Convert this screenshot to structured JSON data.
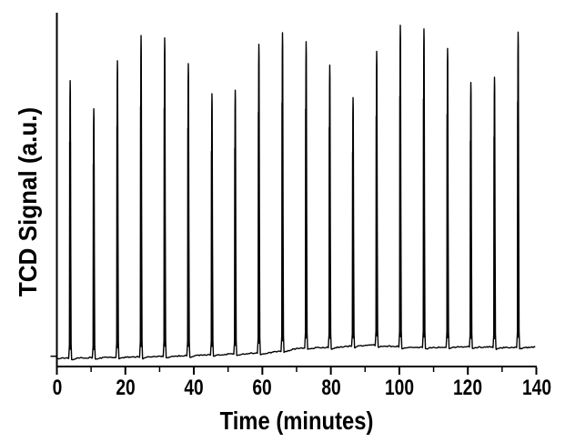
{
  "chart_data": {
    "type": "line",
    "title": "",
    "xlabel": "Time (minutes)",
    "ylabel": "TCD Signal (a.u.)",
    "xlim": [
      0,
      140
    ],
    "x_major_tick_values": [
      0,
      20,
      40,
      60,
      80,
      100,
      120,
      140
    ],
    "x_major_tick_labels": [
      "0",
      "20",
      "40",
      "60",
      "80",
      "100",
      "120",
      "140"
    ],
    "x_minor_tick_values": [
      10,
      30,
      50,
      70,
      90,
      110,
      130
    ],
    "y_tick_levels": [
      0.0065
    ],
    "y_tick_labels": [],
    "grid": false,
    "legend": null,
    "line_color": "#000000",
    "background_color": "#ffffff",
    "n_peaks": 20,
    "peak_interval_minutes": 6.9,
    "peaks": [
      {
        "t": 3.9,
        "h": 0.863
      },
      {
        "t": 10.8,
        "h": 0.774
      },
      {
        "t": 17.7,
        "h": 0.922
      },
      {
        "t": 24.6,
        "h": 0.999
      },
      {
        "t": 31.5,
        "h": 0.99
      },
      {
        "t": 38.4,
        "h": 0.908
      },
      {
        "t": 45.3,
        "h": 0.812
      },
      {
        "t": 52.1,
        "h": 0.82
      },
      {
        "t": 59.0,
        "h": 0.96
      },
      {
        "t": 65.9,
        "h": 0.99
      },
      {
        "t": 72.8,
        "h": 0.952
      },
      {
        "t": 79.7,
        "h": 0.878
      },
      {
        "t": 86.5,
        "h": 0.772
      },
      {
        "t": 93.4,
        "h": 0.914
      },
      {
        "t": 100.3,
        "h": 1.0
      },
      {
        "t": 107.2,
        "h": 0.99
      },
      {
        "t": 114.1,
        "h": 0.929
      },
      {
        "t": 120.9,
        "h": 0.822
      },
      {
        "t": 127.8,
        "h": 0.84
      },
      {
        "t": 134.7,
        "h": 0.98
      }
    ],
    "baseline_levels": [
      {
        "t": 0,
        "level": 0.0
      },
      {
        "t": 10,
        "level": 0.002
      },
      {
        "t": 20,
        "level": 0.004
      },
      {
        "t": 30,
        "level": 0.006
      },
      {
        "t": 40,
        "level": 0.009
      },
      {
        "t": 50,
        "level": 0.013
      },
      {
        "t": 57,
        "level": 0.016
      },
      {
        "t": 62,
        "level": 0.018
      },
      {
        "t": 66,
        "level": 0.023
      },
      {
        "t": 70,
        "level": 0.03
      },
      {
        "t": 73,
        "level": 0.033
      },
      {
        "t": 80,
        "level": 0.034
      },
      {
        "t": 88,
        "level": 0.04
      },
      {
        "t": 93,
        "level": 0.041
      },
      {
        "t": 100,
        "level": 0.036
      },
      {
        "t": 110,
        "level": 0.034
      },
      {
        "t": 120,
        "level": 0.036
      },
      {
        "t": 130,
        "level": 0.034
      },
      {
        "t": 140,
        "level": 0.035
      }
    ]
  }
}
